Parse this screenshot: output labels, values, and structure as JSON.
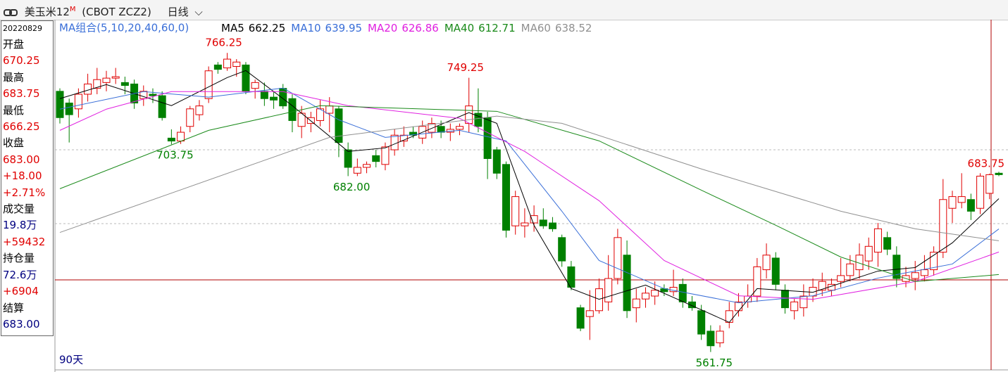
{
  "header": {
    "name": "美玉米12",
    "superscript": "M",
    "code": "(CBOT ZCZ2)",
    "period": "日线"
  },
  "sidebar": {
    "date": "20220829",
    "rows": [
      {
        "label": "开盘",
        "value": "670.25",
        "color": "#e00000"
      },
      {
        "label": "最高",
        "value": "683.75",
        "color": "#e00000"
      },
      {
        "label": "最低",
        "value": "666.25",
        "color": "#e00000"
      },
      {
        "label": "收盘",
        "value": "683.00",
        "color": "#e00000"
      },
      {
        "value": "+18.00",
        "color": "#e00000"
      },
      {
        "value": "+2.71%",
        "color": "#e00000"
      },
      {
        "label": "成交量",
        "value": "19.8万",
        "color": "#000080"
      },
      {
        "value": "+59432",
        "color": "#e00000"
      },
      {
        "label": "持仓量",
        "value": "72.6万",
        "color": "#000080"
      },
      {
        "value": "+6904",
        "color": "#e00000"
      },
      {
        "label": "结算",
        "value": "683.00",
        "color": "#000080"
      }
    ]
  },
  "chart_data": {
    "type": "candlestick",
    "ma_title": "MA组合(5,10,20,40,60,0)",
    "footer": "90天",
    "up_color": "#e00000",
    "down_color": "#008000",
    "ylim": [
      550,
      788
    ],
    "ohlc": [
      [
        740,
        742,
        718,
        722
      ],
      [
        732,
        735,
        705,
        724
      ],
      [
        728,
        742,
        722,
        738
      ],
      [
        738,
        752,
        733,
        745
      ],
      [
        742,
        756,
        738,
        748
      ],
      [
        746,
        754,
        740,
        749
      ],
      [
        749,
        756,
        745,
        750
      ],
      [
        746,
        750,
        738,
        744
      ],
      [
        745,
        748,
        728,
        732
      ],
      [
        735,
        744,
        730,
        740
      ],
      [
        738,
        742,
        732,
        737
      ],
      [
        737,
        740,
        720,
        722
      ],
      [
        708,
        714,
        703.75,
        706
      ],
      [
        706,
        716,
        704,
        712
      ],
      [
        716,
        730,
        712,
        728
      ],
      [
        724,
        734,
        720,
        730
      ],
      [
        735,
        757,
        732,
        754
      ],
      [
        758,
        760,
        752,
        755
      ],
      [
        756,
        766.25,
        754,
        762
      ],
      [
        757,
        762,
        750,
        760
      ],
      [
        758,
        760,
        738,
        740
      ],
      [
        742,
        748,
        735,
        746
      ],
      [
        740,
        746,
        730,
        735
      ],
      [
        736,
        740,
        728,
        734
      ],
      [
        742,
        745,
        728,
        730
      ],
      [
        735,
        738,
        712,
        720
      ],
      [
        716,
        730,
        708,
        725
      ],
      [
        718,
        726,
        712,
        722
      ],
      [
        720,
        734,
        716,
        728
      ],
      [
        725,
        736,
        712,
        730
      ],
      [
        728,
        730,
        695,
        705
      ],
      [
        700,
        705,
        682,
        688
      ],
      [
        684,
        694,
        682,
        688
      ],
      [
        688,
        692,
        684,
        690
      ],
      [
        696,
        700,
        688,
        692
      ],
      [
        690,
        705,
        686,
        702
      ],
      [
        700,
        714,
        696,
        710
      ],
      [
        706,
        716,
        702,
        710
      ],
      [
        712,
        716,
        708,
        710
      ],
      [
        708,
        720,
        704,
        716
      ],
      [
        712,
        722,
        708,
        718
      ],
      [
        716,
        720,
        708,
        712
      ],
      [
        712,
        718,
        706,
        714
      ],
      [
        714,
        718,
        710,
        716
      ],
      [
        718,
        749.25,
        712,
        730
      ],
      [
        725,
        742,
        712,
        716
      ],
      [
        722,
        726,
        680,
        694
      ],
      [
        700,
        702,
        680,
        684
      ],
      [
        690,
        692,
        640,
        645
      ],
      [
        648,
        672,
        642,
        668
      ],
      [
        648,
        660,
        640,
        650
      ],
      [
        650,
        662,
        644,
        655
      ],
      [
        652,
        660,
        646,
        648
      ],
      [
        650,
        654,
        644,
        646
      ],
      [
        640,
        642,
        620,
        624
      ],
      [
        620,
        624,
        604,
        606
      ],
      [
        592,
        594,
        576,
        578
      ],
      [
        586,
        604,
        570,
        590
      ],
      [
        590,
        612,
        588,
        605
      ],
      [
        596,
        628,
        590,
        612
      ],
      [
        612,
        646,
        608,
        640
      ],
      [
        628,
        638,
        585,
        590
      ],
      [
        592,
        605,
        582,
        598
      ],
      [
        598,
        606,
        592,
        602
      ],
      [
        600,
        610,
        594,
        604
      ],
      [
        605,
        608,
        600,
        603
      ],
      [
        603,
        618,
        600,
        606
      ],
      [
        608,
        612,
        592,
        596
      ],
      [
        596,
        600,
        590,
        592
      ],
      [
        590,
        594,
        570,
        574
      ],
      [
        576,
        580,
        561.75,
        566
      ],
      [
        568,
        580,
        565,
        576
      ],
      [
        582,
        596,
        578,
        590
      ],
      [
        590,
        602,
        586,
        596
      ],
      [
        596,
        608,
        592,
        600
      ],
      [
        600,
        626,
        596,
        620
      ],
      [
        618,
        636,
        612,
        628
      ],
      [
        626,
        630,
        604,
        608
      ],
      [
        604,
        608,
        588,
        592
      ],
      [
        590,
        598,
        584,
        596
      ],
      [
        592,
        608,
        586,
        600
      ],
      [
        600,
        612,
        596,
        606
      ],
      [
        604,
        616,
        600,
        610
      ],
      [
        604,
        612,
        600,
        608
      ],
      [
        610,
        626,
        606,
        614
      ],
      [
        614,
        628,
        610,
        622
      ],
      [
        618,
        636,
        612,
        628
      ],
      [
        624,
        640,
        618,
        634
      ],
      [
        630,
        650,
        620,
        646
      ],
      [
        640,
        644,
        628,
        632
      ],
      [
        628,
        634,
        606,
        612
      ],
      [
        610,
        620,
        606,
        614
      ],
      [
        612,
        624,
        604,
        616
      ],
      [
        614,
        628,
        610,
        618
      ],
      [
        618,
        634,
        614,
        630
      ],
      [
        630,
        680,
        626,
        666
      ],
      [
        660,
        672,
        650,
        668
      ],
      [
        664,
        684,
        660,
        668
      ],
      [
        666,
        670,
        652,
        658
      ],
      [
        660,
        684,
        656,
        682
      ],
      [
        670.25,
        683.75,
        666.25,
        683
      ],
      [
        684,
        685,
        682,
        683
      ]
    ],
    "series": [
      {
        "name": "MA5",
        "last": 662.25,
        "color": "#000000",
        "x": [
          0,
          5,
          12,
          18,
          20,
          25,
          31,
          35,
          44,
          47,
          51,
          55,
          58,
          63,
          69,
          72,
          75,
          81,
          88,
          92,
          96,
          101
        ],
        "values": [
          735,
          744.6,
          730.2,
          749.4,
          754.2,
          730.2,
          698.9,
          701.3,
          725.4,
          718.1,
          648.4,
          605.1,
          597.8,
          607.5,
          590.6,
          582,
          605.1,
          602.6,
          617.1,
          619.5,
          636.4,
          666.6
        ]
      },
      {
        "name": "MA10",
        "last": 639.95,
        "color": "#3a6fd8",
        "x": [
          0,
          9,
          16,
          24,
          30,
          35,
          43,
          48,
          54,
          58,
          65,
          73,
          81,
          88,
          96,
          101
        ],
        "values": [
          727.8,
          739.8,
          736,
          742.2,
          720.5,
          708.5,
          713.3,
          706.1,
          658,
          624.3,
          605.1,
          595.4,
          600.2,
          612.3,
          621.9,
          645.9
        ]
      },
      {
        "name": "MA20",
        "last": 626.86,
        "color": "#e020e0",
        "x": [
          0,
          5,
          12,
          24,
          31,
          43,
          50,
          58,
          65,
          73,
          81,
          92,
          101
        ],
        "values": [
          713.3,
          727.8,
          739.8,
          739.8,
          730.2,
          721.5,
          698.9,
          665.2,
          624.3,
          600.2,
          597.8,
          609.9,
          630.1
        ]
      },
      {
        "name": "MA40",
        "last": 612.71,
        "color": "#1a8a1a",
        "x": [
          0,
          16,
          28,
          47,
          58,
          69,
          77,
          84,
          92,
          101
        ],
        "values": [
          673.4,
          713.3,
          730.2,
          726.3,
          706.1,
          672.4,
          648.4,
          626.7,
          609.9,
          614.7
        ]
      },
      {
        "name": "MA60",
        "last": 638.52,
        "color": "#909090",
        "x": [
          0,
          29,
          47,
          54,
          69,
          84,
          92,
          101
        ],
        "values": [
          643.5,
          708.5,
          723,
          718.1,
          686.9,
          658,
          646,
          637.8
        ]
      }
    ],
    "annotations": [
      {
        "x": 18,
        "value": 766.25,
        "label": "766.25"
      },
      {
        "x": 44,
        "value": 749.25,
        "label": "749.25"
      },
      {
        "x": 100,
        "value": 683.75,
        "label": "683.75"
      },
      {
        "x": 12,
        "value": 703.75,
        "label": "703.75"
      },
      {
        "x": 31,
        "value": 682,
        "label": "682.00"
      },
      {
        "x": 70,
        "value": 561.75,
        "label": "561.75"
      }
    ]
  }
}
